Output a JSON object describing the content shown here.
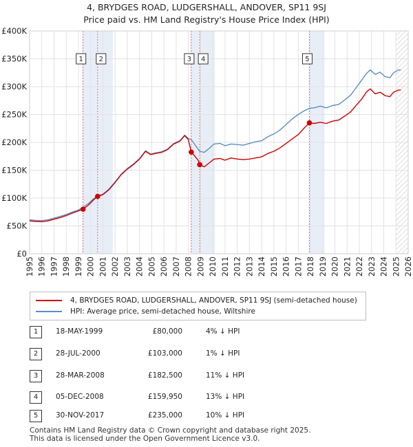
{
  "header": {
    "title": "4, BRYDGES ROAD, LUDGERSHALL, ANDOVER, SP11 9SJ",
    "subtitle": "Price paid vs. HM Land Registry's House Price Index (HPI)"
  },
  "chart_data": {
    "type": "line",
    "title": "4, BRYDGES ROAD, LUDGERSHALL, ANDOVER, SP11 9SJ",
    "subtitle": "Price paid vs. HM Land Registry's House Price Index (HPI)",
    "xlim": [
      1995,
      2026
    ],
    "ylim": [
      0,
      400000
    ],
    "x_ticks": [
      "1995",
      "1996",
      "1997",
      "1998",
      "1999",
      "2000",
      "2001",
      "2002",
      "2003",
      "2004",
      "2005",
      "2006",
      "2007",
      "2008",
      "2009",
      "2010",
      "2011",
      "2012",
      "2013",
      "2014",
      "2015",
      "2016",
      "2017",
      "2018",
      "2019",
      "2020",
      "2021",
      "2022",
      "2023",
      "2024",
      "2025",
      "2026"
    ],
    "y_ticks": [
      {
        "value": 0,
        "label": "£0"
      },
      {
        "value": 50000,
        "label": "£50K"
      },
      {
        "value": 100000,
        "label": "£100K"
      },
      {
        "value": 150000,
        "label": "£150K"
      },
      {
        "value": 200000,
        "label": "£200K"
      },
      {
        "value": 250000,
        "label": "£250K"
      },
      {
        "value": 300000,
        "label": "£300K"
      },
      {
        "value": 350000,
        "label": "£350K"
      },
      {
        "value": 400000,
        "label": "£400K"
      }
    ],
    "grid": true,
    "forecast_from": 2025.0,
    "colors": {
      "property": "#cc0000",
      "hpi": "#5b8ec4",
      "sale_band": "#e8eef8",
      "sale_line": "#ee4444",
      "hatch": "#c7c7c7",
      "grid": "#e2e2e2"
    },
    "series": [
      {
        "name": "4, BRYDGES ROAD, LUDGERSHALL, ANDOVER, SP11 9SJ (semi-detached house)",
        "color": "#cc0000",
        "points": [
          [
            1995.0,
            59000
          ],
          [
            1995.5,
            58000
          ],
          [
            1996.0,
            57500
          ],
          [
            1996.5,
            59000
          ],
          [
            1997.0,
            62000
          ],
          [
            1997.5,
            65000
          ],
          [
            1998.0,
            68500
          ],
          [
            1998.5,
            73000
          ],
          [
            1999.0,
            77000
          ],
          [
            1999.38,
            80000
          ],
          [
            1999.8,
            87000
          ],
          [
            2000.2,
            96000
          ],
          [
            2000.57,
            103000
          ],
          [
            2001.0,
            106000
          ],
          [
            2001.5,
            115000
          ],
          [
            2002.0,
            128000
          ],
          [
            2002.5,
            142000
          ],
          [
            2003.0,
            152000
          ],
          [
            2003.5,
            160000
          ],
          [
            2004.0,
            170000
          ],
          [
            2004.5,
            184000
          ],
          [
            2004.9,
            178000
          ],
          [
            2005.3,
            180000
          ],
          [
            2005.8,
            182000
          ],
          [
            2006.3,
            187000
          ],
          [
            2006.8,
            197000
          ],
          [
            2007.3,
            202000
          ],
          [
            2007.7,
            212000
          ],
          [
            2008.0,
            205000
          ],
          [
            2008.24,
            182500
          ],
          [
            2008.5,
            176000
          ],
          [
            2008.8,
            168000
          ],
          [
            2008.93,
            159950
          ],
          [
            2009.3,
            156000
          ],
          [
            2009.7,
            163000
          ],
          [
            2010.1,
            170000
          ],
          [
            2010.6,
            171000
          ],
          [
            2011.0,
            168000
          ],
          [
            2011.5,
            172000
          ],
          [
            2012.0,
            170000
          ],
          [
            2012.5,
            169000
          ],
          [
            2013.0,
            170000
          ],
          [
            2013.5,
            172000
          ],
          [
            2014.0,
            174000
          ],
          [
            2014.5,
            180000
          ],
          [
            2015.0,
            184000
          ],
          [
            2015.5,
            190000
          ],
          [
            2016.0,
            198000
          ],
          [
            2016.5,
            206000
          ],
          [
            2017.0,
            214000
          ],
          [
            2017.5,
            226000
          ],
          [
            2017.91,
            235000
          ],
          [
            2018.3,
            234000
          ],
          [
            2018.8,
            236000
          ],
          [
            2019.3,
            234000
          ],
          [
            2019.8,
            238000
          ],
          [
            2020.3,
            240000
          ],
          [
            2020.8,
            247000
          ],
          [
            2021.3,
            255000
          ],
          [
            2021.8,
            268000
          ],
          [
            2022.2,
            278000
          ],
          [
            2022.6,
            291000
          ],
          [
            2022.9,
            296000
          ],
          [
            2023.3,
            287000
          ],
          [
            2023.7,
            290000
          ],
          [
            2024.1,
            284000
          ],
          [
            2024.5,
            282000
          ],
          [
            2024.8,
            290000
          ],
          [
            2025.2,
            294000
          ],
          [
            2025.4,
            294000
          ]
        ]
      },
      {
        "name": "HPI: Average price, semi-detached house, Wiltshire",
        "color": "#5b8ec4",
        "points": [
          [
            1995.0,
            61000
          ],
          [
            1995.5,
            60000
          ],
          [
            1996.0,
            59500
          ],
          [
            1996.5,
            61000
          ],
          [
            1997.0,
            64000
          ],
          [
            1997.5,
            67000
          ],
          [
            1998.0,
            70500
          ],
          [
            1998.5,
            75000
          ],
          [
            1999.0,
            78500
          ],
          [
            1999.38,
            83500
          ],
          [
            1999.8,
            90000
          ],
          [
            2000.2,
            98000
          ],
          [
            2000.57,
            104000
          ],
          [
            2001.0,
            107000
          ],
          [
            2001.5,
            116000
          ],
          [
            2002.0,
            129000
          ],
          [
            2002.5,
            143000
          ],
          [
            2003.0,
            153000
          ],
          [
            2003.5,
            161000
          ],
          [
            2004.0,
            171000
          ],
          [
            2004.5,
            185000
          ],
          [
            2004.9,
            179000
          ],
          [
            2005.3,
            181000
          ],
          [
            2005.8,
            183000
          ],
          [
            2006.3,
            188000
          ],
          [
            2006.8,
            198000
          ],
          [
            2007.3,
            203000
          ],
          [
            2007.7,
            213000
          ],
          [
            2008.0,
            207000
          ],
          [
            2008.24,
            205000
          ],
          [
            2008.6,
            194000
          ],
          [
            2008.93,
            184000
          ],
          [
            2009.3,
            182000
          ],
          [
            2009.7,
            189000
          ],
          [
            2010.1,
            197000
          ],
          [
            2010.6,
            198000
          ],
          [
            2011.0,
            194000
          ],
          [
            2011.5,
            197000
          ],
          [
            2012.0,
            196000
          ],
          [
            2012.5,
            195000
          ],
          [
            2013.0,
            198000
          ],
          [
            2013.5,
            201000
          ],
          [
            2014.0,
            203000
          ],
          [
            2014.5,
            210000
          ],
          [
            2015.0,
            215000
          ],
          [
            2015.5,
            222000
          ],
          [
            2016.0,
            232000
          ],
          [
            2016.5,
            242000
          ],
          [
            2017.0,
            250000
          ],
          [
            2017.5,
            257000
          ],
          [
            2017.91,
            261000
          ],
          [
            2018.3,
            262000
          ],
          [
            2018.8,
            265000
          ],
          [
            2019.3,
            262000
          ],
          [
            2019.8,
            266000
          ],
          [
            2020.3,
            268000
          ],
          [
            2020.8,
            276000
          ],
          [
            2021.3,
            285000
          ],
          [
            2021.8,
            300000
          ],
          [
            2022.2,
            312000
          ],
          [
            2022.6,
            324000
          ],
          [
            2022.9,
            330000
          ],
          [
            2023.3,
            322000
          ],
          [
            2023.7,
            326000
          ],
          [
            2024.1,
            318000
          ],
          [
            2024.5,
            316000
          ],
          [
            2024.8,
            325000
          ],
          [
            2025.2,
            330000
          ],
          [
            2025.4,
            330000
          ]
        ]
      }
    ],
    "sales": [
      {
        "id": "1",
        "x": 1999.38,
        "price": 80000
      },
      {
        "id": "2",
        "x": 2000.57,
        "price": 103000
      },
      {
        "id": "3",
        "x": 2008.24,
        "price": 182500
      },
      {
        "id": "4",
        "x": 2008.93,
        "price": 159950
      },
      {
        "id": "5",
        "x": 2017.91,
        "price": 235000
      }
    ]
  },
  "legend": {
    "items": [
      {
        "label": "4, BRYDGES ROAD, LUDGERSHALL, ANDOVER, SP11 9SJ (semi-detached house)",
        "color": "#cc0000"
      },
      {
        "label": "HPI: Average price, semi-detached house, Wiltshire",
        "color": "#5b8ec4"
      }
    ]
  },
  "table": {
    "rows": [
      {
        "num": "1",
        "date": "18-MAY-1999",
        "price": "£80,000",
        "hpi": "4% ↓ HPI"
      },
      {
        "num": "2",
        "date": "28-JUL-2000",
        "price": "£103,000",
        "hpi": "1% ↓ HPI"
      },
      {
        "num": "3",
        "date": "28-MAR-2008",
        "price": "£182,500",
        "hpi": "11% ↓ HPI"
      },
      {
        "num": "4",
        "date": "05-DEC-2008",
        "price": "£159,950",
        "hpi": "13% ↓ HPI"
      },
      {
        "num": "5",
        "date": "30-NOV-2017",
        "price": "£235,000",
        "hpi": "10% ↓ HPI"
      }
    ]
  },
  "footer": {
    "line1": "Contains HM Land Registry data © Crown copyright and database right 2025.",
    "line2": "This data is licensed under the Open Government Licence v3.0."
  }
}
